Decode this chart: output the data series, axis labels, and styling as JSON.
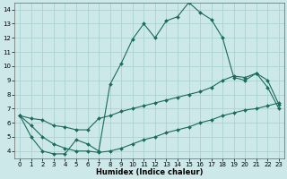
{
  "xlabel": "Humidex (Indice chaleur)",
  "bg_color": "#cce8e8",
  "grid_color": "#aad2d2",
  "line_color": "#1a6b5a",
  "xlim": [
    -0.5,
    23.5
  ],
  "ylim": [
    3.5,
    14.5
  ],
  "xticks": [
    0,
    1,
    2,
    3,
    4,
    5,
    6,
    7,
    8,
    9,
    10,
    11,
    12,
    13,
    14,
    15,
    16,
    17,
    18,
    19,
    20,
    21,
    22,
    23
  ],
  "yticks": [
    4,
    5,
    6,
    7,
    8,
    9,
    10,
    11,
    12,
    13,
    14
  ],
  "series": [
    {
      "x": [
        0,
        1,
        2,
        3,
        4,
        5,
        6,
        7,
        8,
        9,
        10,
        11,
        12,
        13,
        14,
        15,
        16,
        17,
        18,
        19,
        20,
        21,
        22,
        23
      ],
      "y": [
        6.5,
        5.0,
        4.0,
        3.8,
        3.8,
        4.8,
        4.5,
        4.0,
        8.7,
        10.2,
        11.9,
        13.0,
        12.0,
        13.2,
        13.5,
        14.5,
        13.8,
        13.3,
        12.0,
        9.2,
        9.0,
        9.5,
        8.5,
        7.0
      ]
    },
    {
      "x": [
        0,
        1,
        2,
        3,
        4,
        5,
        6,
        7,
        8,
        9,
        10,
        11,
        12,
        13,
        14,
        15,
        16,
        17,
        18,
        19,
        20,
        21,
        22,
        23
      ],
      "y": [
        6.5,
        6.3,
        6.2,
        5.8,
        5.7,
        5.5,
        5.5,
        6.3,
        6.5,
        6.8,
        7.0,
        7.2,
        7.4,
        7.6,
        7.8,
        8.0,
        8.2,
        8.5,
        9.0,
        9.3,
        9.2,
        9.5,
        9.0,
        7.3
      ]
    },
    {
      "x": [
        0,
        1,
        2,
        3,
        4,
        5,
        6,
        7,
        8,
        9,
        10,
        11,
        12,
        13,
        14,
        15,
        16,
        17,
        18,
        19,
        20,
        21,
        22,
        23
      ],
      "y": [
        6.5,
        5.8,
        5.0,
        4.5,
        4.2,
        4.0,
        4.0,
        3.9,
        4.0,
        4.2,
        4.5,
        4.8,
        5.0,
        5.3,
        5.5,
        5.7,
        6.0,
        6.2,
        6.5,
        6.7,
        6.9,
        7.0,
        7.2,
        7.4
      ]
    }
  ]
}
